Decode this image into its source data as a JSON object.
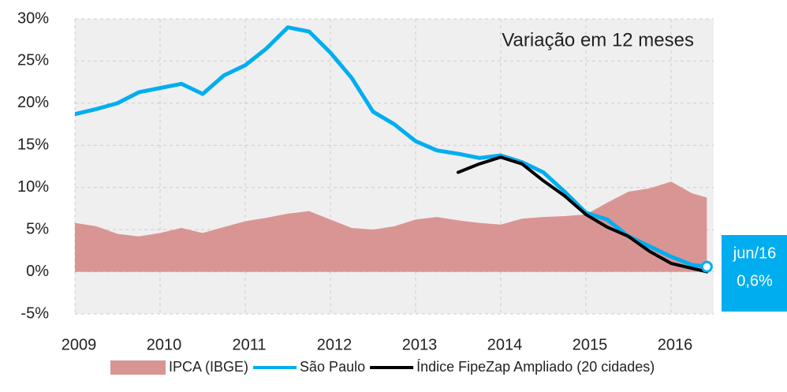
{
  "chart_data": {
    "type": "line",
    "title": "Variação em 12 meses",
    "x": [
      2009,
      2009.25,
      2009.5,
      2009.75,
      2010,
      2010.25,
      2010.5,
      2010.75,
      2011,
      2011.25,
      2011.5,
      2011.75,
      2012,
      2012.25,
      2012.5,
      2012.75,
      2013,
      2013.25,
      2013.5,
      2013.75,
      2014,
      2014.25,
      2014.5,
      2014.75,
      2015,
      2015.25,
      2015.5,
      2015.75,
      2016,
      2016.25,
      2016.42
    ],
    "series": [
      {
        "name": "IPCA (IBGE)",
        "color": "#d99594",
        "kind": "area",
        "values": [
          5.8,
          5.4,
          4.5,
          4.2,
          4.6,
          5.2,
          4.6,
          5.3,
          6.0,
          6.4,
          6.9,
          7.2,
          6.2,
          5.2,
          5.0,
          5.4,
          6.2,
          6.5,
          6.1,
          5.8,
          5.6,
          6.3,
          6.5,
          6.6,
          6.8,
          8.2,
          9.5,
          9.9,
          10.7,
          9.3,
          8.8
        ]
      },
      {
        "name": "São Paulo",
        "color": "#00aeef",
        "kind": "line",
        "values": [
          18.7,
          19.3,
          20.0,
          21.3,
          21.8,
          22.3,
          21.1,
          23.3,
          24.5,
          26.5,
          29.0,
          28.5,
          26.0,
          23.0,
          19.0,
          17.5,
          15.5,
          14.4,
          14.0,
          13.5,
          13.8,
          13.0,
          11.8,
          9.5,
          7.0,
          6.2,
          4.2,
          3.0,
          1.8,
          0.8,
          0.6
        ]
      },
      {
        "name": "Índice FipeZap Ampliado (20 cidades)",
        "color": "#000000",
        "kind": "line",
        "values": [
          null,
          null,
          null,
          null,
          null,
          null,
          null,
          null,
          null,
          null,
          null,
          null,
          null,
          null,
          null,
          null,
          null,
          null,
          11.8,
          12.8,
          13.6,
          12.8,
          10.8,
          9.0,
          6.8,
          5.3,
          4.2,
          2.4,
          1.0,
          0.4,
          0.0
        ]
      }
    ],
    "annotation": {
      "label": "jun/16",
      "value_label": "0,6%"
    },
    "xlim": [
      2009,
      2016.5
    ],
    "xticks": [
      2009,
      2010,
      2011,
      2012,
      2013,
      2014,
      2015,
      2016
    ],
    "ylim": [
      -5,
      30
    ],
    "yticks": [
      {
        "value": -5,
        "label": "-5%"
      },
      {
        "value": 0,
        "label": "0%"
      },
      {
        "value": 5,
        "label": "5%"
      },
      {
        "value": 10,
        "label": "10%"
      },
      {
        "value": 15,
        "label": "15%"
      },
      {
        "value": 20,
        "label": "20%"
      },
      {
        "value": 25,
        "label": "25%"
      },
      {
        "value": 30,
        "label": "30%"
      }
    ],
    "grid": true
  }
}
